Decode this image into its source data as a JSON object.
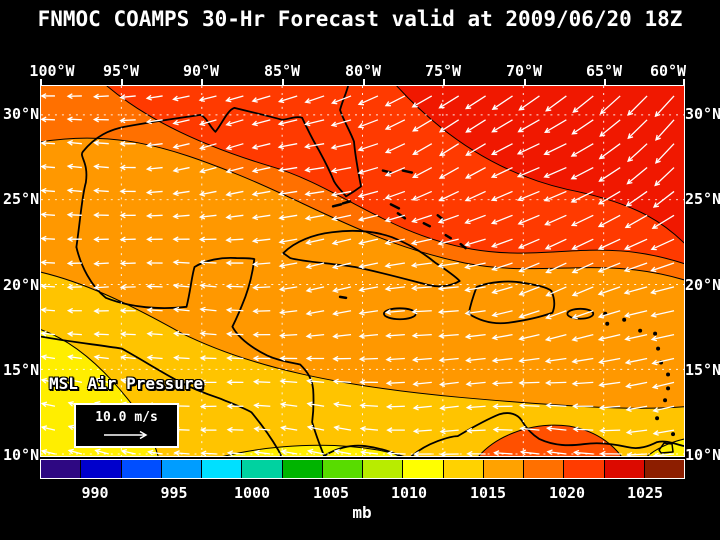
{
  "title": "FNMOC COAMPS 30-Hr Forecast valid at 2009/06/20 18Z",
  "axes": {
    "lon": [
      "100°W",
      "95°W",
      "90°W",
      "85°W",
      "80°W",
      "75°W",
      "70°W",
      "65°W",
      "60°W"
    ],
    "lat": [
      "30°N",
      "25°N",
      "20°N",
      "15°N",
      "10°N"
    ]
  },
  "map": {
    "field_label": "MSL Air Pressure",
    "wind_scale_label": "10.0 m/s"
  },
  "colorbar": {
    "ticks": [
      "990",
      "995",
      "1000",
      "1005",
      "1010",
      "1015",
      "1020",
      "1025"
    ],
    "unit": "mb",
    "colors": [
      "#2e0882",
      "#0000cc",
      "#004eff",
      "#009dff",
      "#00e0ff",
      "#00d2a0",
      "#00b400",
      "#58dc00",
      "#b8ec00",
      "#ffff00",
      "#ffd200",
      "#ffa200",
      "#ff7000",
      "#ff3c00",
      "#dc0a00",
      "#8c1e00"
    ]
  },
  "field_colors": {
    "base_orange": "#ff9800",
    "amber": "#ffc400",
    "yellow": "#ffee00",
    "warm_patch": "#ff5000",
    "orange_red": "#ff7000",
    "red": "#ff3a00",
    "deep_red": "#f01800",
    "coastline": "#000000",
    "gridline": "#ffffff",
    "wind_arrow": "#ffffff"
  }
}
